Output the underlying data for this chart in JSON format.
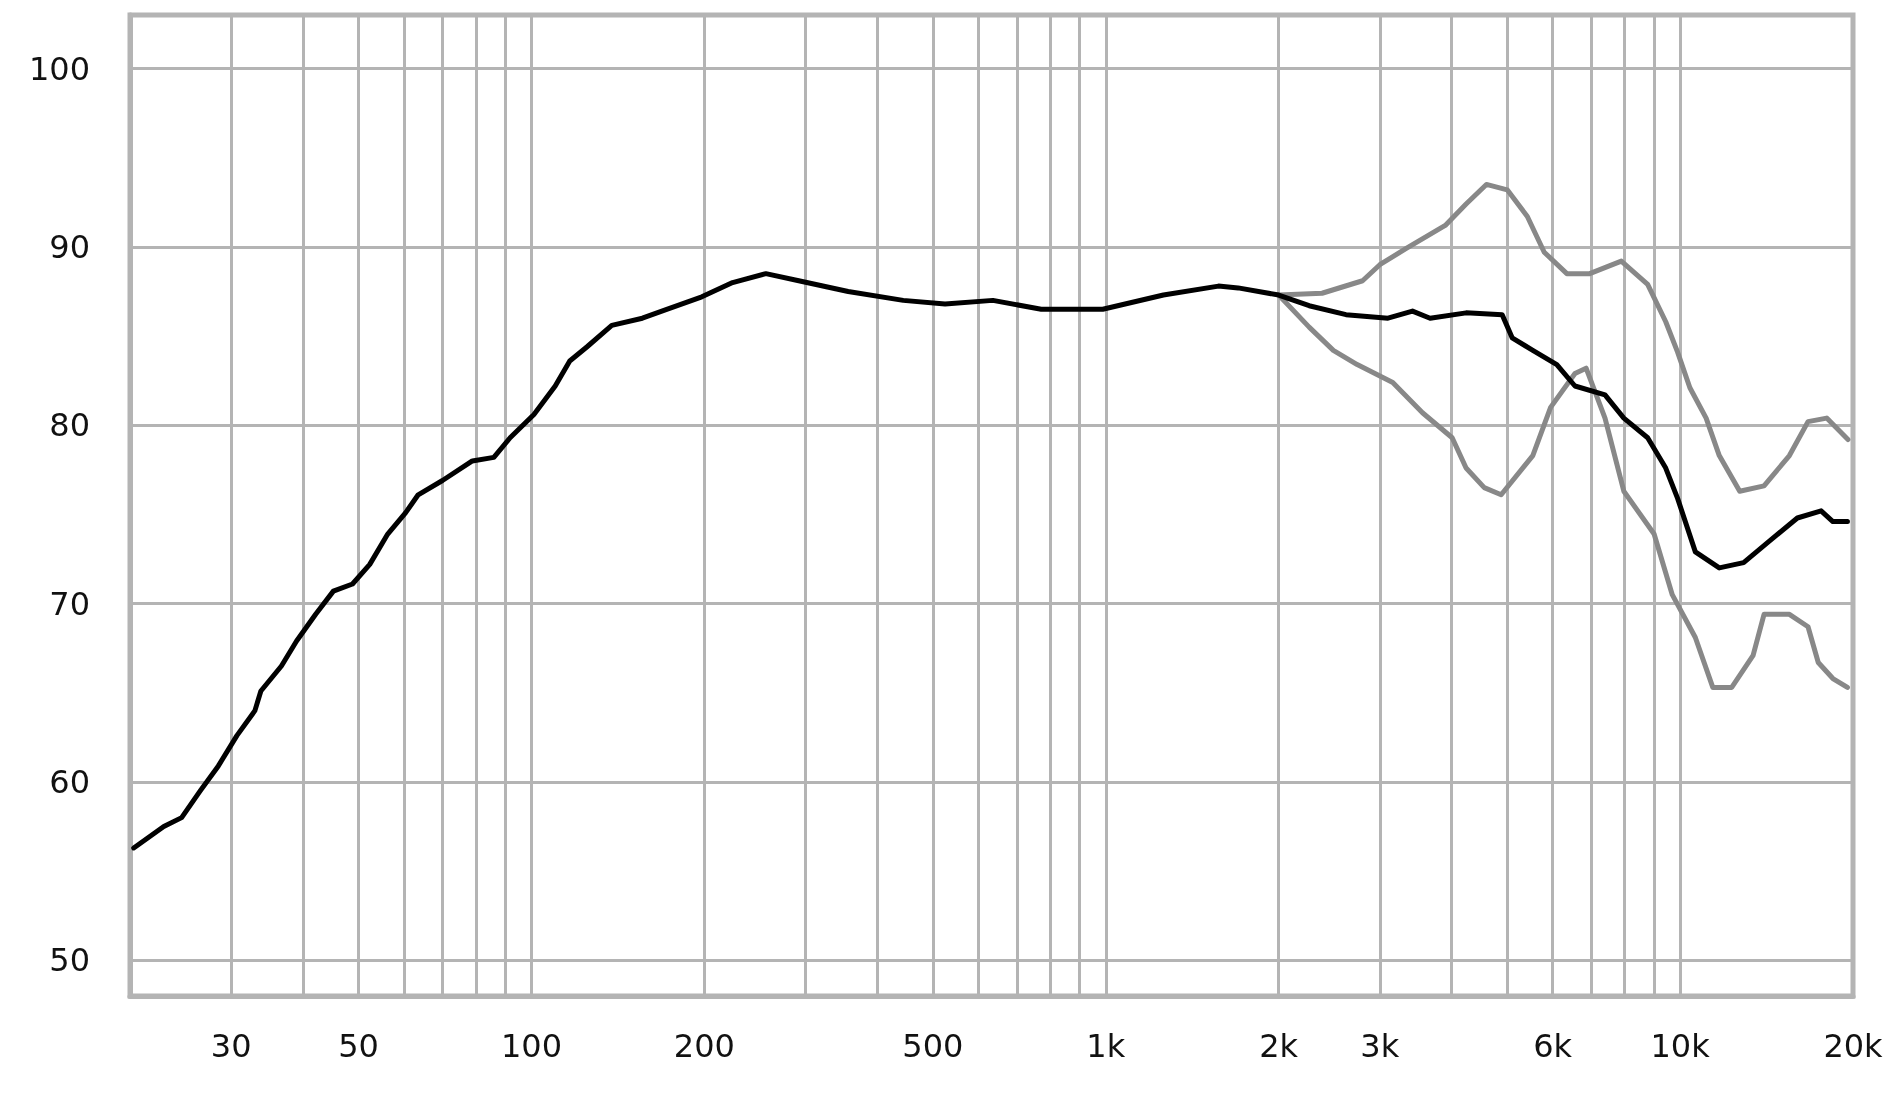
{
  "chart_data": {
    "type": "line",
    "log": "x",
    "grid": true,
    "marker": "none",
    "xlim": [
      20,
      20000
    ],
    "ylim": [
      48,
      103
    ],
    "xticks": [
      {
        "value": 20,
        "label": null
      },
      30,
      {
        "value": 40,
        "label": null
      },
      50,
      {
        "value": 60,
        "label": null
      },
      {
        "value": 70,
        "label": null
      },
      {
        "value": 80,
        "label": null
      },
      {
        "value": 90,
        "label": null
      },
      100,
      200,
      {
        "value": 300,
        "label": null
      },
      {
        "value": 400,
        "label": null
      },
      500,
      {
        "value": 600,
        "label": null
      },
      {
        "value": 700,
        "label": null
      },
      {
        "value": 800,
        "label": null
      },
      {
        "value": 900,
        "label": null
      },
      {
        "value": 1000,
        "label": "1k"
      },
      {
        "value": 2000,
        "label": "2k"
      },
      {
        "value": 3000,
        "label": "3k"
      },
      {
        "value": 4000,
        "label": null
      },
      {
        "value": 5000,
        "label": null
      },
      {
        "value": 6000,
        "label": "6k"
      },
      {
        "value": 7000,
        "label": null
      },
      {
        "value": 8000,
        "label": null
      },
      {
        "value": 9000,
        "label": null
      },
      {
        "value": 10000,
        "label": "10k"
      },
      {
        "value": 20000,
        "label": "20k"
      }
    ],
    "yticks": [
      50,
      60,
      70,
      80,
      90,
      100
    ],
    "series": [
      {
        "color": "#888888",
        "x": [
          2000,
          2380,
          2800,
          3000,
          3330,
          3900,
          4240,
          4600,
          5000,
          5420,
          5800,
          6350,
          6960,
          7900,
          8780,
          9440,
          9900,
          10400,
          11100,
          11700,
          12700,
          14000,
          15500,
          16700,
          18000,
          19600
        ],
        "values": [
          87.3,
          87.4,
          88.1,
          89.0,
          89.9,
          91.2,
          92.4,
          93.5,
          93.2,
          91.7,
          89.7,
          88.5,
          88.5,
          89.2,
          87.9,
          85.8,
          84.1,
          82.1,
          80.4,
          78.3,
          76.3,
          76.6,
          78.3,
          80.2,
          80.4,
          79.2
        ]
      },
      {
        "color": "#888888",
        "x": [
          2000,
          2260,
          2490,
          2740,
          3160,
          3560,
          4010,
          4240,
          4560,
          4880,
          5540,
          5950,
          6560,
          6860,
          7400,
          7980,
          9010,
          9690,
          10630,
          11400,
          12300,
          13400,
          14000,
          15500,
          16700,
          17400,
          18450,
          19560
        ],
        "values": [
          87.3,
          85.5,
          84.2,
          83.4,
          82.4,
          80.7,
          79.3,
          77.6,
          76.5,
          76.1,
          78.3,
          81.0,
          82.9,
          83.2,
          80.4,
          76.3,
          73.9,
          70.5,
          68.1,
          65.3,
          65.3,
          67.1,
          69.4,
          69.4,
          68.7,
          66.7,
          65.8,
          65.3
        ]
      },
      {
        "color": "#000000",
        "x": [
          20.3,
          22.9,
          24.6,
          26.5,
          28.5,
          30.7,
          33.0,
          33.8,
          36.7,
          39.0,
          42.1,
          45.2,
          48.8,
          52.3,
          56.2,
          60.4,
          63.5,
          70.0,
          78.9,
          86.0,
          91.8,
          101,
          110,
          116.6,
          125,
          138,
          156,
          172,
          198,
          224,
          256,
          292,
          356,
          444,
          525,
          636,
          772,
          988,
          1260,
          1571,
          1700,
          2000,
          2260,
          2620,
          3100,
          3420,
          3670,
          4240,
          4900,
          5100,
          5540,
          6100,
          6560,
          7400,
          7980,
          8780,
          9440,
          9900,
          10630,
          11700,
          12900,
          14300,
          16000,
          17600,
          18450,
          19560
        ],
        "values": [
          56.3,
          57.5,
          58.0,
          59.5,
          60.9,
          62.6,
          64.0,
          65.1,
          66.5,
          67.9,
          69.4,
          70.7,
          71.1,
          72.2,
          73.9,
          75.1,
          76.1,
          76.9,
          78.0,
          78.2,
          79.3,
          80.6,
          82.2,
          83.6,
          84.4,
          85.6,
          86.0,
          86.5,
          87.2,
          88.0,
          88.5,
          88.1,
          87.5,
          87.0,
          86.8,
          87.0,
          86.5,
          86.5,
          87.3,
          87.8,
          87.7,
          87.3,
          86.7,
          86.2,
          86.0,
          86.4,
          86.0,
          86.3,
          86.2,
          84.9,
          84.2,
          83.4,
          82.2,
          81.7,
          80.4,
          79.3,
          77.6,
          75.9,
          72.9,
          72.0,
          72.3,
          73.5,
          74.8,
          75.2,
          74.6,
          74.6
        ]
      }
    ]
  }
}
